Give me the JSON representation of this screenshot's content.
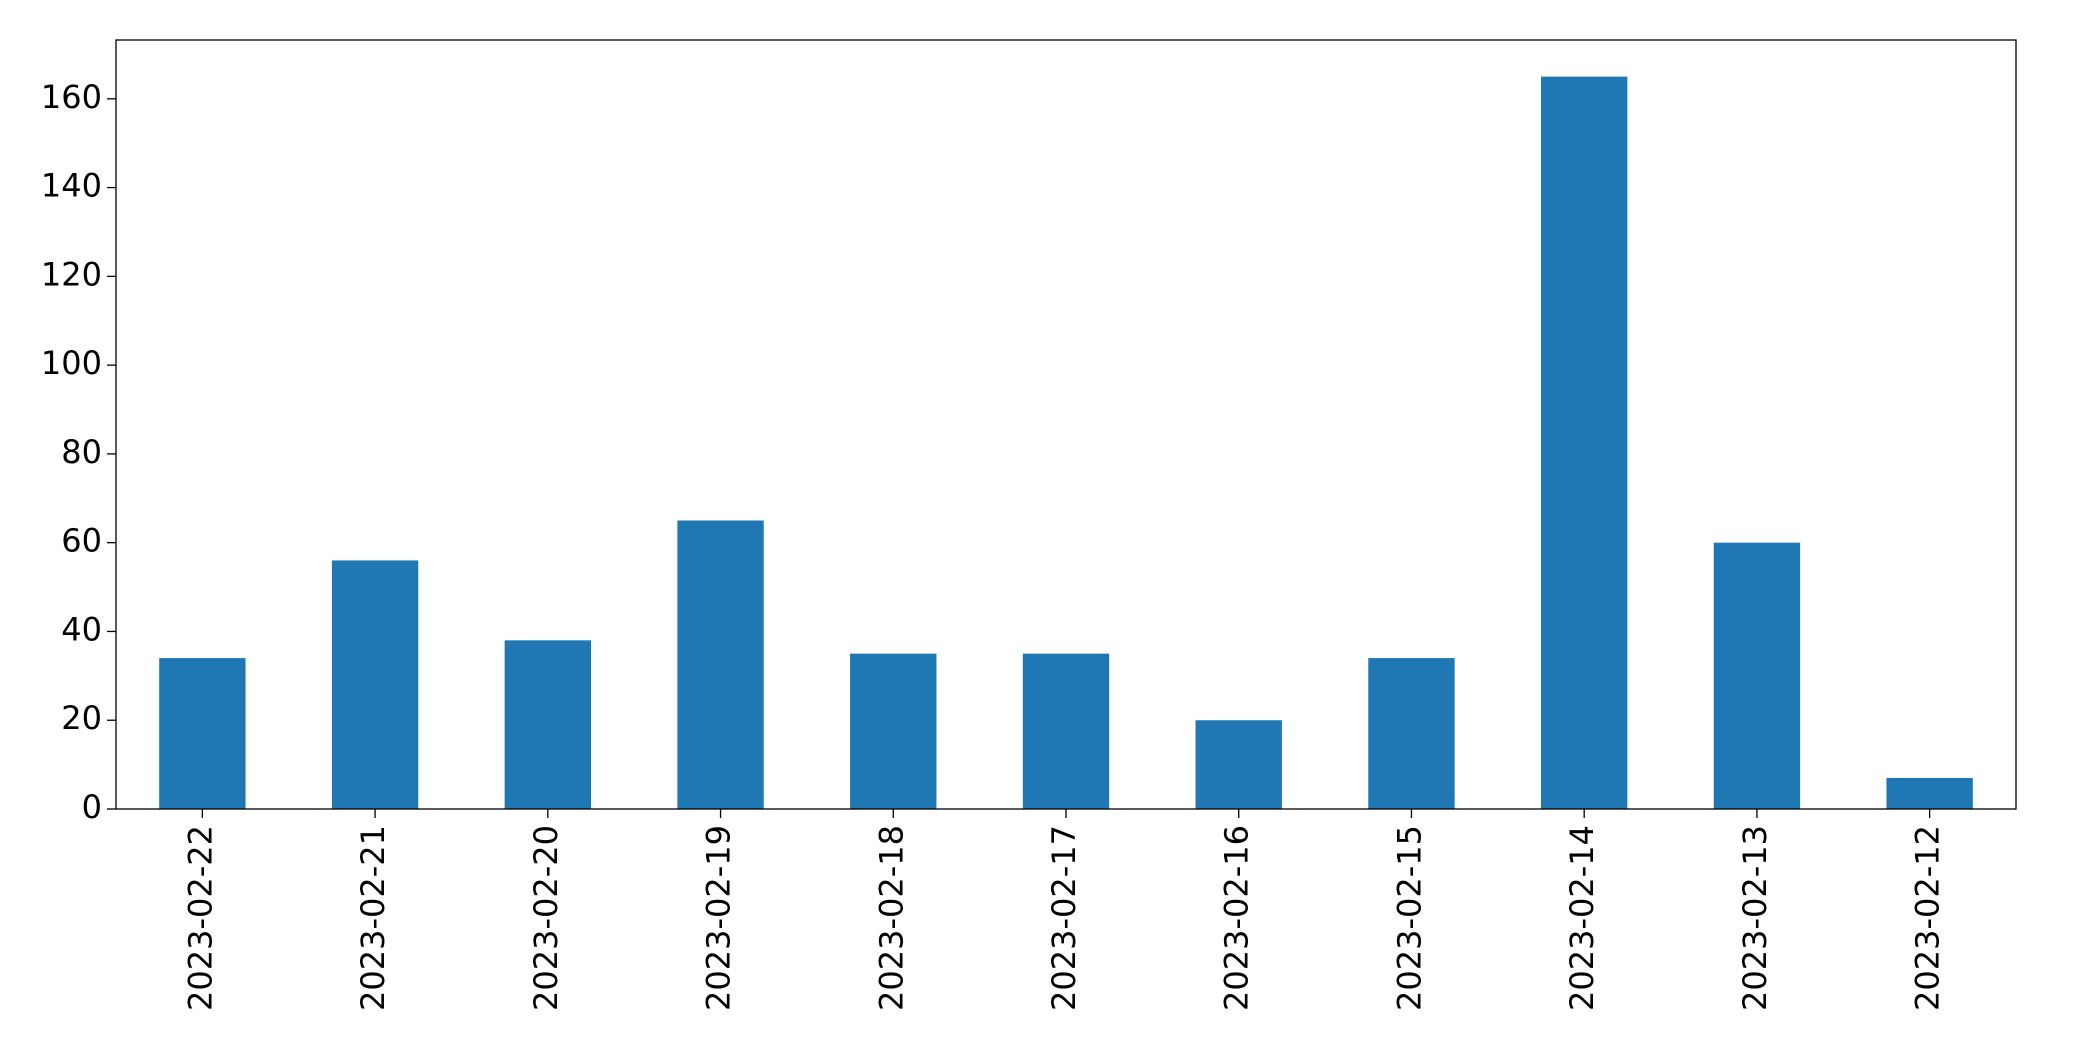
{
  "chart_data": {
    "type": "bar",
    "categories": [
      "2023-02-22",
      "2023-02-21",
      "2023-02-20",
      "2023-02-19",
      "2023-02-18",
      "2023-02-17",
      "2023-02-16",
      "2023-02-15",
      "2023-02-14",
      "2023-02-13",
      "2023-02-12"
    ],
    "values": [
      34,
      56,
      38,
      65,
      35,
      35,
      20,
      34,
      165,
      60,
      7
    ],
    "color": "#1f77b4",
    "ylim": [
      0,
      173.25
    ],
    "yticks": [
      0,
      20,
      40,
      60,
      80,
      100,
      120,
      140,
      160
    ],
    "grid": false
  }
}
